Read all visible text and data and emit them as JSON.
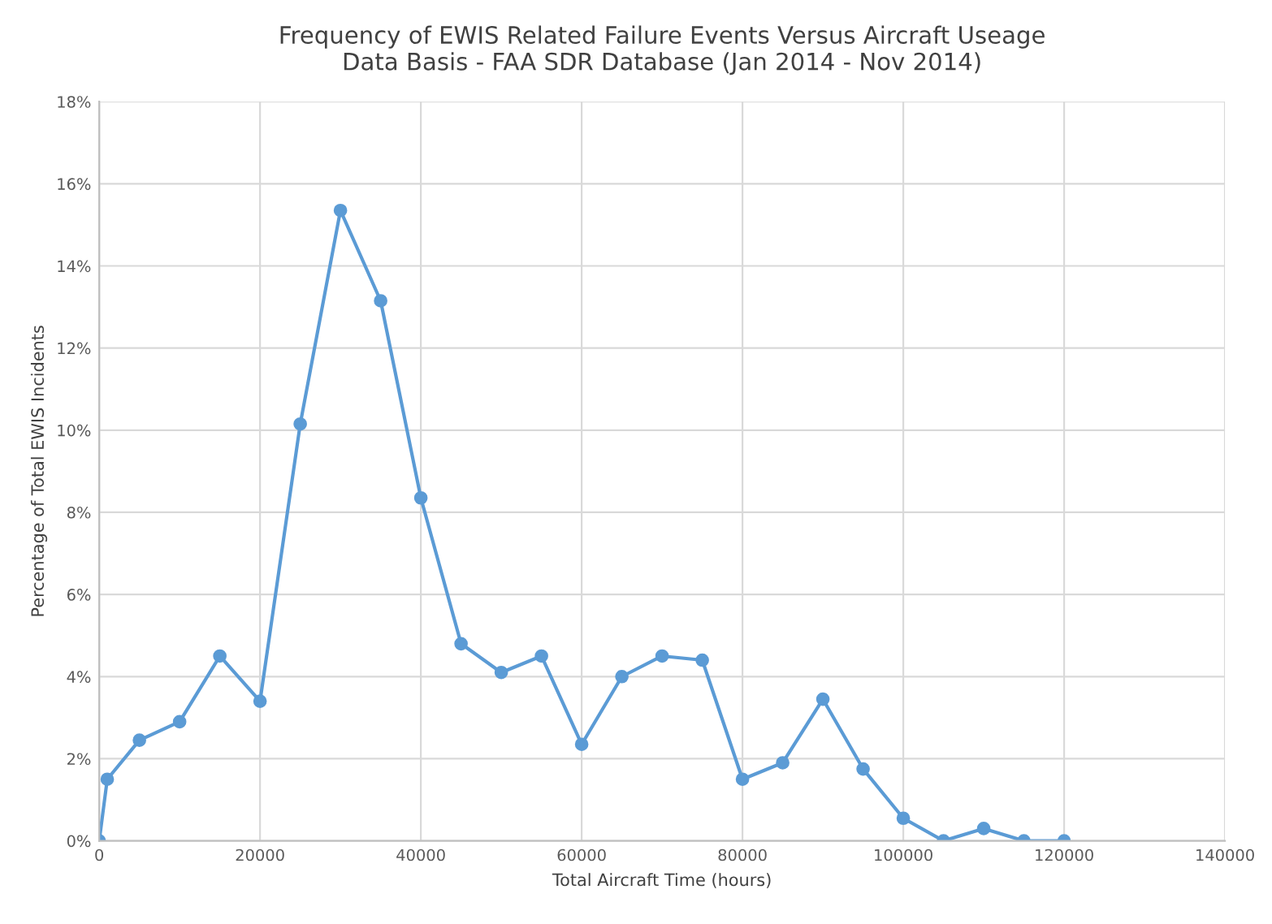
{
  "chart_data": {
    "type": "line",
    "title": "Frequency of EWIS Related Failure Events Versus Aircraft Useage\nData Basis - FAA SDR Database (Jan 2014 - Nov 2014)",
    "xlabel": "Total Aircraft Time (hours)",
    "ylabel": "Percentage of Total EWIS Incidents",
    "x": [
      0,
      1000,
      5000,
      10000,
      15000,
      20000,
      25000,
      30000,
      35000,
      40000,
      45000,
      50000,
      55000,
      60000,
      65000,
      70000,
      75000,
      80000,
      85000,
      90000,
      95000,
      100000,
      105000,
      110000,
      115000,
      120000
    ],
    "series": [
      {
        "color": "#5b9bd5",
        "values": [
          0,
          1.5,
          2.45,
          2.9,
          4.5,
          3.4,
          10.15,
          15.35,
          13.15,
          8.35,
          4.8,
          4.1,
          4.5,
          2.35,
          4.0,
          4.5,
          4.4,
          1.5,
          1.9,
          3.45,
          1.75,
          0.55,
          0,
          0.3,
          0,
          0
        ]
      }
    ],
    "xlim": [
      0,
      140000
    ],
    "xticks": [
      0,
      20000,
      40000,
      60000,
      80000,
      100000,
      120000,
      140000
    ],
    "ylim": [
      0,
      18
    ],
    "yticks": [
      {
        "value": 0,
        "label": "0%"
      },
      {
        "value": 2,
        "label": "2%"
      },
      {
        "value": 4,
        "label": "4%"
      },
      {
        "value": 6,
        "label": "6%"
      },
      {
        "value": 8,
        "label": "8%"
      },
      {
        "value": 10,
        "label": "10%"
      },
      {
        "value": 12,
        "label": "12%"
      },
      {
        "value": 14,
        "label": "14%"
      },
      {
        "value": 16,
        "label": "16%"
      },
      {
        "value": 18,
        "label": "18%"
      }
    ],
    "grid": true,
    "marker": "circle",
    "line_style": "solid",
    "legend": false
  }
}
